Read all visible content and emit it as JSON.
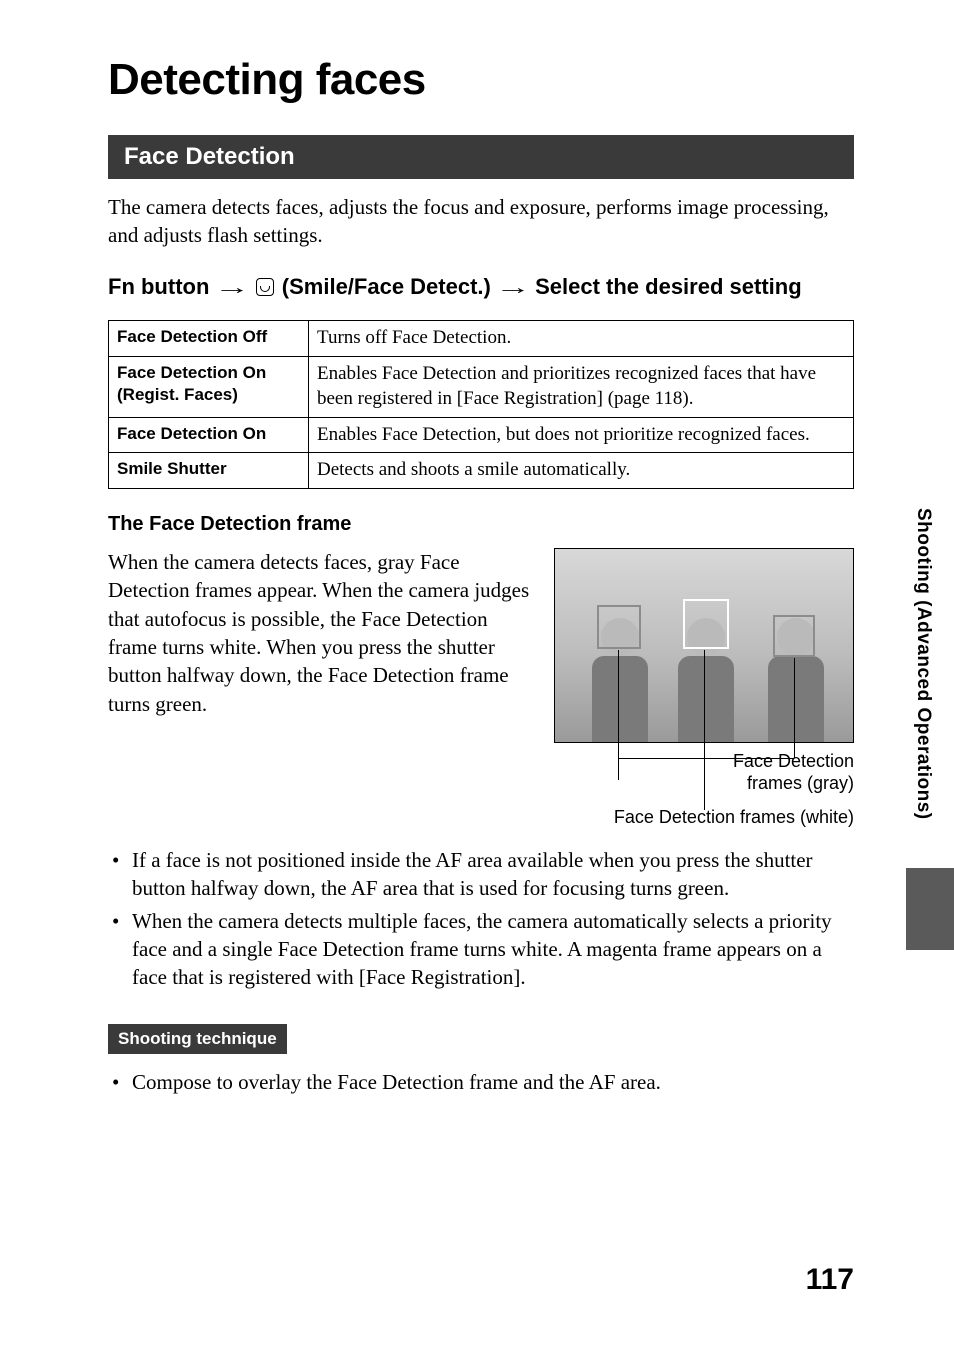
{
  "page_title": "Detecting faces",
  "section_bar": "Face Detection",
  "intro_text": "The camera detects faces, adjusts the focus and exposure, performs image processing, and adjusts flash settings.",
  "instruction": {
    "prefix": "Fn button",
    "middle": "(Smile/Face Detect.)",
    "suffix": "Select the desired setting"
  },
  "options_table": {
    "rows": [
      {
        "name": "Face Detection Off",
        "desc": "Turns off Face Detection."
      },
      {
        "name": "Face Detection On (Regist. Faces)",
        "desc": "Enables Face Detection and prioritizes recognized faces that have been registered in [Face Registration] (page 118)."
      },
      {
        "name": "Face Detection On",
        "desc": "Enables Face Detection, but does not prioritize recognized faces."
      },
      {
        "name": "Smile Shutter",
        "desc": "Detects and shoots a smile automatically."
      }
    ]
  },
  "frame_heading": "The Face Detection frame",
  "frame_text": "When the camera detects faces, gray Face Detection frames appear. When the camera judges that autofocus is possible, the Face Detection frame turns white. When you press the shutter button halfway down, the Face Detection frame turns green.",
  "caption_gray_line1": "Face Detection",
  "caption_gray_line2": "frames (gray)",
  "caption_white": "Face Detection frames (white)",
  "bullets": [
    "If a face is not positioned inside the AF area available when you press the shutter button halfway down, the AF area that is used for focusing turns green.",
    "When the camera detects multiple faces, the camera automatically selects a priority face and a single Face Detection frame turns white. A magenta frame appears on a face that is registered with [Face Registration]."
  ],
  "technique_label": "Shooting technique",
  "technique_bullet": "Compose to overlay the Face Detection frame and the AF area.",
  "side_tab": "Shooting (Advanced Operations)",
  "page_number": "117",
  "colors": {
    "section_bg": "#3a3a3a",
    "text": "#000000"
  }
}
